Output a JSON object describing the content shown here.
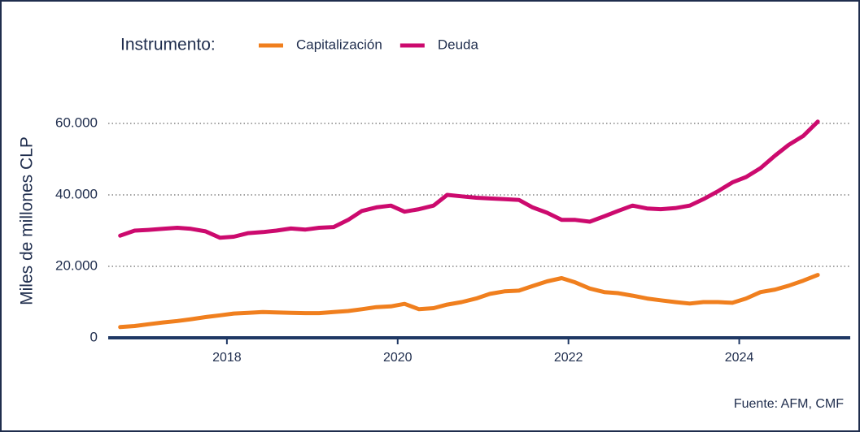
{
  "chart_data": {
    "type": "line",
    "ylabel": "Miles de millones CLP",
    "legend_title": "Instrumento:",
    "source": "Fuente: AFM, CMF",
    "grid": true,
    "x": [
      2016.75,
      2016.92,
      2017.08,
      2017.25,
      2017.42,
      2017.58,
      2017.75,
      2017.92,
      2018.08,
      2018.25,
      2018.42,
      2018.58,
      2018.75,
      2018.92,
      2019.08,
      2019.25,
      2019.42,
      2019.58,
      2019.75,
      2019.92,
      2020.08,
      2020.25,
      2020.42,
      2020.58,
      2020.75,
      2020.92,
      2021.08,
      2021.25,
      2021.42,
      2021.58,
      2021.75,
      2021.92,
      2022.08,
      2022.25,
      2022.42,
      2022.58,
      2022.75,
      2022.92,
      2023.08,
      2023.25,
      2023.42,
      2023.58,
      2023.75,
      2023.92,
      2024.08,
      2024.25,
      2024.42,
      2024.58,
      2024.75,
      2024.92
    ],
    "series": [
      {
        "name": "Capitalización",
        "color": "#f07f1e",
        "values": [
          3000,
          3300,
          3800,
          4300,
          4700,
          5200,
          5800,
          6300,
          6800,
          7000,
          7200,
          7100,
          7000,
          6900,
          6900,
          7200,
          7500,
          8000,
          8600,
          8800,
          9500,
          8000,
          8300,
          9300,
          10000,
          11000,
          12300,
          13000,
          13200,
          14500,
          15800,
          16700,
          15500,
          13800,
          12800,
          12500,
          11800,
          11000,
          10500,
          10000,
          9600,
          10000,
          10000,
          9800,
          11000,
          12800,
          13500,
          14600,
          16000,
          17600
        ]
      },
      {
        "name": "Deuda",
        "color": "#cc0a6e",
        "values": [
          28600,
          30000,
          30200,
          30500,
          30800,
          30500,
          29800,
          28000,
          28300,
          29300,
          29600,
          30000,
          30600,
          30300,
          30800,
          31000,
          33000,
          35500,
          36500,
          37000,
          35300,
          36000,
          37000,
          40000,
          39600,
          39200,
          39000,
          38800,
          38600,
          36500,
          35000,
          33000,
          33000,
          32500,
          34000,
          35500,
          37000,
          36200,
          36000,
          36300,
          37000,
          38800,
          41000,
          43500,
          45000,
          47500,
          51000,
          54000,
          56500,
          60500
        ]
      }
    ],
    "xlim": [
      2016.61,
      2025.3
    ],
    "xticks": [
      2018,
      2020,
      2022,
      2024
    ],
    "ylim": [
      0,
      65000
    ],
    "yticks": [
      0,
      {
        "value": 20000,
        "label": "20.000"
      },
      {
        "value": 40000,
        "label": "40.000"
      },
      {
        "value": 60000,
        "label": "60.000"
      }
    ]
  }
}
